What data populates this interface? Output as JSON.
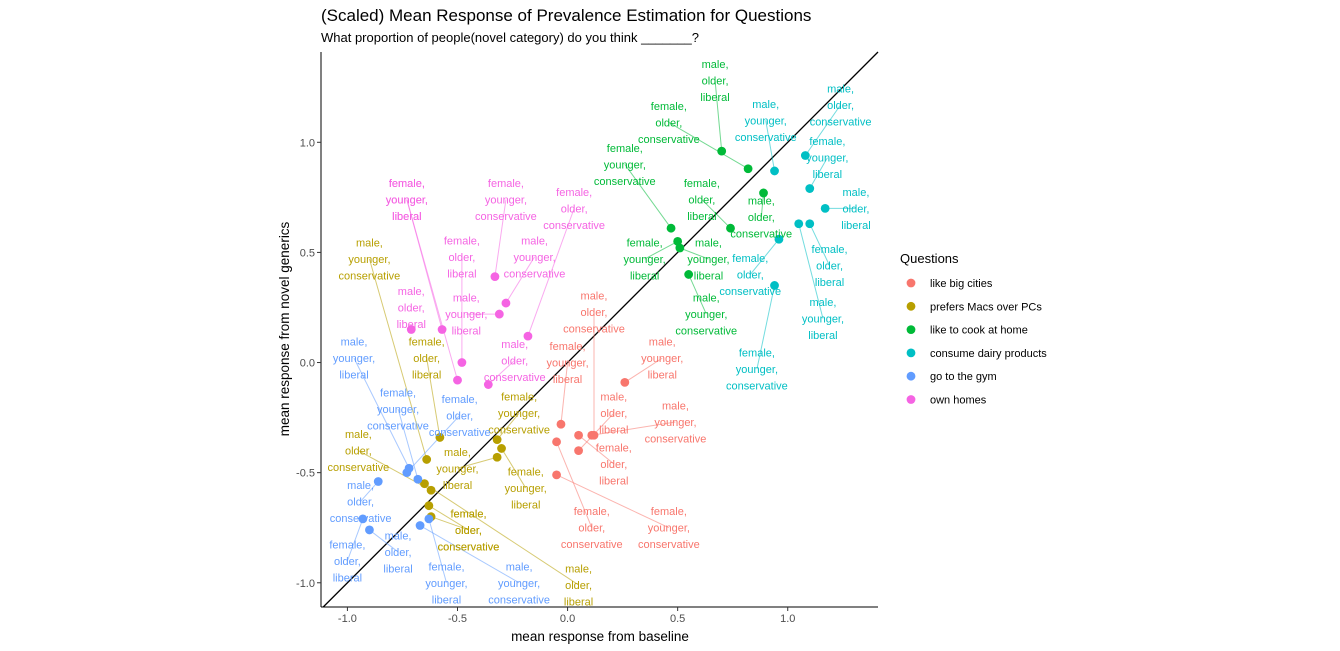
{
  "chart_data": {
    "type": "scatter",
    "title": "(Scaled) Mean Response of Prevalence Estimation for Questions",
    "subtitle": "What proportion of people(novel category) do you think _______?",
    "xlabel": "mean response from baseline",
    "ylabel": "mean response from novel generics",
    "xlim": [
      -1.12,
      1.41
    ],
    "ylim": [
      -1.11,
      1.41
    ],
    "x_ticks": [
      -1.0,
      -0.5,
      0.0,
      0.5,
      1.0
    ],
    "x_tick_labels": [
      "-1.0",
      "-0.5",
      "0.0",
      "0.5",
      "1.0"
    ],
    "y_ticks": [
      -1.0,
      -0.5,
      0.0,
      0.5,
      1.0
    ],
    "y_tick_labels": [
      "-1.0",
      "-0.5",
      "0.0",
      "0.5",
      "1.0"
    ],
    "reference_line": "y = x",
    "grid": false,
    "legend_title": "Questions",
    "legend_position": "right",
    "series": [
      {
        "name": "like big cities",
        "color": "#F8766D",
        "points": [
          {
            "label": "male, younger, liberal",
            "x": 0.26,
            "y": -0.09,
            "lx": 0.43,
            "ly": 0.02
          },
          {
            "label": "male, older, conservative",
            "x": 0.12,
            "y": -0.33,
            "lx": 0.12,
            "ly": 0.23
          },
          {
            "label": "male, older, liberal",
            "x": 0.05,
            "y": -0.4,
            "lx": 0.21,
            "ly": -0.23
          },
          {
            "label": "male, younger, conservative",
            "x": 0.11,
            "y": -0.33,
            "lx": 0.49,
            "ly": -0.27
          },
          {
            "label": "female, younger, liberal",
            "x": -0.03,
            "y": -0.28,
            "lx": 0.0,
            "ly": 0.0
          },
          {
            "label": "female, older, liberal",
            "x": 0.05,
            "y": -0.33,
            "lx": 0.21,
            "ly": -0.46
          },
          {
            "label": "female, older, conservative",
            "x": -0.05,
            "y": -0.36,
            "lx": 0.11,
            "ly": -0.75
          },
          {
            "label": "female, younger, conservative",
            "x": -0.05,
            "y": -0.51,
            "lx": 0.46,
            "ly": -0.75
          }
        ]
      },
      {
        "name": "prefers Macs over PCs",
        "color": "#B79F00",
        "points": [
          {
            "label": "male, younger, conservative",
            "x": -0.64,
            "y": -0.44,
            "lx": -0.9,
            "ly": 0.47
          },
          {
            "label": "female, older, liberal",
            "x": -0.58,
            "y": -0.34,
            "lx": -0.64,
            "ly": 0.02
          },
          {
            "label": "female, younger, conservative",
            "x": -0.32,
            "y": -0.35,
            "lx": -0.22,
            "ly": -0.23
          },
          {
            "label": "male, older, conservative",
            "x": -0.62,
            "y": -0.58,
            "lx": -0.95,
            "ly": -0.4
          },
          {
            "label": "male, younger, liberal",
            "x": -0.32,
            "y": -0.43,
            "lx": -0.5,
            "ly": -0.48
          },
          {
            "label": "female, younger, liberal",
            "x": -0.3,
            "y": -0.39,
            "lx": -0.19,
            "ly": -0.57
          },
          {
            "label": "male, older, liberal",
            "x": -0.65,
            "y": -0.55,
            "lx": 0.05,
            "ly": -1.01
          },
          {
            "label": "female, older, conservative",
            "x": -0.62,
            "y": -0.7,
            "lx": -0.45,
            "ly": -0.76
          },
          {
            "label": "female, older, conservative",
            "x": -0.63,
            "y": -0.65,
            "lx": -0.45,
            "ly": -0.76
          }
        ]
      },
      {
        "name": "like to cook at home",
        "color": "#00BA38",
        "points": [
          {
            "label": "male, older, liberal",
            "x": 0.7,
            "y": 0.96,
            "lx": 0.67,
            "ly": 1.28
          },
          {
            "label": "female, older, conservative",
            "x": 0.82,
            "y": 0.88,
            "lx": 0.46,
            "ly": 1.09
          },
          {
            "label": "female, younger, conservative",
            "x": 0.47,
            "y": 0.61,
            "lx": 0.26,
            "ly": 0.9
          },
          {
            "label": "female, older, liberal",
            "x": 0.74,
            "y": 0.61,
            "lx": 0.61,
            "ly": 0.74
          },
          {
            "label": "male, older, conservative",
            "x": 0.89,
            "y": 0.77,
            "lx": 0.88,
            "ly": 0.66
          },
          {
            "label": "female, younger, liberal",
            "x": 0.5,
            "y": 0.55,
            "lx": 0.35,
            "ly": 0.47
          },
          {
            "label": "male, younger, liberal",
            "x": 0.51,
            "y": 0.52,
            "lx": 0.64,
            "ly": 0.47
          },
          {
            "label": "male, younger, conservative",
            "x": 0.55,
            "y": 0.4,
            "lx": 0.63,
            "ly": 0.22
          }
        ]
      },
      {
        "name": "consume dairy products",
        "color": "#00BFC4",
        "points": [
          {
            "label": "male, older, conservative",
            "x": 1.08,
            "y": 0.94,
            "lx": 1.24,
            "ly": 1.17
          },
          {
            "label": "male, younger, conservative",
            "x": 0.94,
            "y": 0.87,
            "lx": 0.9,
            "ly": 1.1
          },
          {
            "label": "female, younger, liberal",
            "x": 1.1,
            "y": 0.79,
            "lx": 1.18,
            "ly": 0.93
          },
          {
            "label": "male, older, liberal",
            "x": 1.17,
            "y": 0.7,
            "lx": 1.31,
            "ly": 0.7
          },
          {
            "label": "female, older, liberal",
            "x": 1.1,
            "y": 0.63,
            "lx": 1.19,
            "ly": 0.44
          },
          {
            "label": "female, older, conservative",
            "x": 0.96,
            "y": 0.56,
            "lx": 0.83,
            "ly": 0.4
          },
          {
            "label": "male, younger, liberal",
            "x": 1.05,
            "y": 0.63,
            "lx": 1.16,
            "ly": 0.2
          },
          {
            "label": "female, younger, conservative",
            "x": 0.94,
            "y": 0.35,
            "lx": 0.86,
            "ly": -0.03
          }
        ]
      },
      {
        "name": "go to the gym",
        "color": "#619CFF",
        "points": [
          {
            "label": "male, younger, liberal",
            "x": -0.72,
            "y": -0.48,
            "lx": -0.97,
            "ly": 0.02
          },
          {
            "label": "female, younger, conservative",
            "x": -0.68,
            "y": -0.53,
            "lx": -0.77,
            "ly": -0.21
          },
          {
            "label": "female, older, conservative",
            "x": -0.73,
            "y": -0.5,
            "lx": -0.49,
            "ly": -0.24
          },
          {
            "label": "male, older, conservative",
            "x": -0.86,
            "y": -0.54,
            "lx": -0.94,
            "ly": -0.63
          },
          {
            "label": "female, older, liberal",
            "x": -0.93,
            "y": -0.71,
            "lx": -1.0,
            "ly": -0.9
          },
          {
            "label": "male, older, liberal",
            "x": -0.9,
            "y": -0.76,
            "lx": -0.77,
            "ly": -0.86
          },
          {
            "label": "female, younger, liberal",
            "x": -0.63,
            "y": -0.71,
            "lx": -0.55,
            "ly": -1.0
          },
          {
            "label": "male, younger, conservative",
            "x": -0.67,
            "y": -0.74,
            "lx": -0.22,
            "ly": -1.0
          }
        ]
      },
      {
        "name": "own homes",
        "color": "#F564E3",
        "points": [
          {
            "label": "female, younger, liberal",
            "x": -0.57,
            "y": 0.15,
            "lx": -0.73,
            "ly": 0.74
          },
          {
            "label": "female, younger, conservative",
            "x": -0.33,
            "y": 0.39,
            "lx": -0.28,
            "ly": 0.74
          },
          {
            "label": "female, older, conservative",
            "x": -0.18,
            "y": 0.12,
            "lx": 0.03,
            "ly": 0.7
          },
          {
            "label": "female, older, liberal",
            "x": -0.48,
            "y": 0.0,
            "lx": -0.48,
            "ly": 0.48
          },
          {
            "label": "male, younger, conservative",
            "x": -0.28,
            "y": 0.27,
            "lx": -0.15,
            "ly": 0.48
          },
          {
            "label": "male, older, liberal",
            "x": -0.71,
            "y": 0.15,
            "lx": -0.71,
            "ly": 0.25
          },
          {
            "label": "male, younger, liberal",
            "x": -0.31,
            "y": 0.22,
            "lx": -0.46,
            "ly": 0.22
          },
          {
            "label": "male, older, conservative",
            "x": -0.36,
            "y": -0.1,
            "lx": -0.24,
            "ly": 0.01
          },
          {
            "label": "female, younger, liberal",
            "x": -0.5,
            "y": -0.08,
            "lx": -0.73,
            "ly": 0.74
          }
        ]
      }
    ]
  }
}
